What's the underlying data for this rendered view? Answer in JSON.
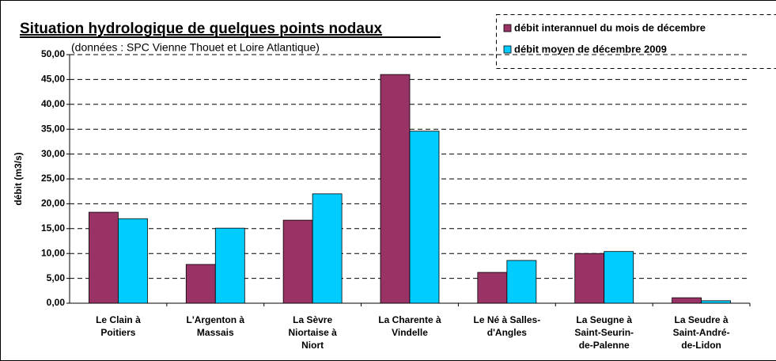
{
  "chart_data": {
    "type": "bar",
    "title": "Situation hydrologique de quelques points nodaux",
    "subtitle": "(données : SPC Vienne Thouet et Loire Atlantique)",
    "y_label": "débit (m3/s)",
    "categories": [
      "Le Clain à\nPoitiers",
      "L'Argenton à\nMassais",
      "La Sèvre\nNiortaise à\nNiort",
      "La Charente à\nVindelle",
      "Le Né à Salles-\nd'Angles",
      "La Seugne à\nSaint-Seurin-\nde-Palenne",
      "La Seudre à\nSaint-André-\nde-Lidon"
    ],
    "series": [
      {
        "name": "débit interannuel du mois de décembre",
        "color": "#993366",
        "values": [
          18.3,
          7.8,
          16.7,
          46.0,
          6.2,
          10.0,
          1.1
        ]
      },
      {
        "name": "débit moyen de décembre 2009",
        "color": "#00ccff",
        "values": [
          17.0,
          15.1,
          22.0,
          34.6,
          8.6,
          10.4,
          0.5
        ]
      }
    ],
    "ylim": [
      0,
      50
    ],
    "yticks": [
      {
        "value": 0,
        "label": "0,00"
      },
      {
        "value": 5,
        "label": "5,00"
      },
      {
        "value": 10,
        "label": "10,00"
      },
      {
        "value": 15,
        "label": "15,00"
      },
      {
        "value": 20,
        "label": "20,00"
      },
      {
        "value": 25,
        "label": "25,00"
      },
      {
        "value": 30,
        "label": "30,00"
      },
      {
        "value": 35,
        "label": "35,00"
      },
      {
        "value": 40,
        "label": "40,00"
      },
      {
        "value": 45,
        "label": "45,00"
      },
      {
        "value": 50,
        "label": "50,00"
      }
    ],
    "grid": true,
    "legend": "top-right"
  }
}
